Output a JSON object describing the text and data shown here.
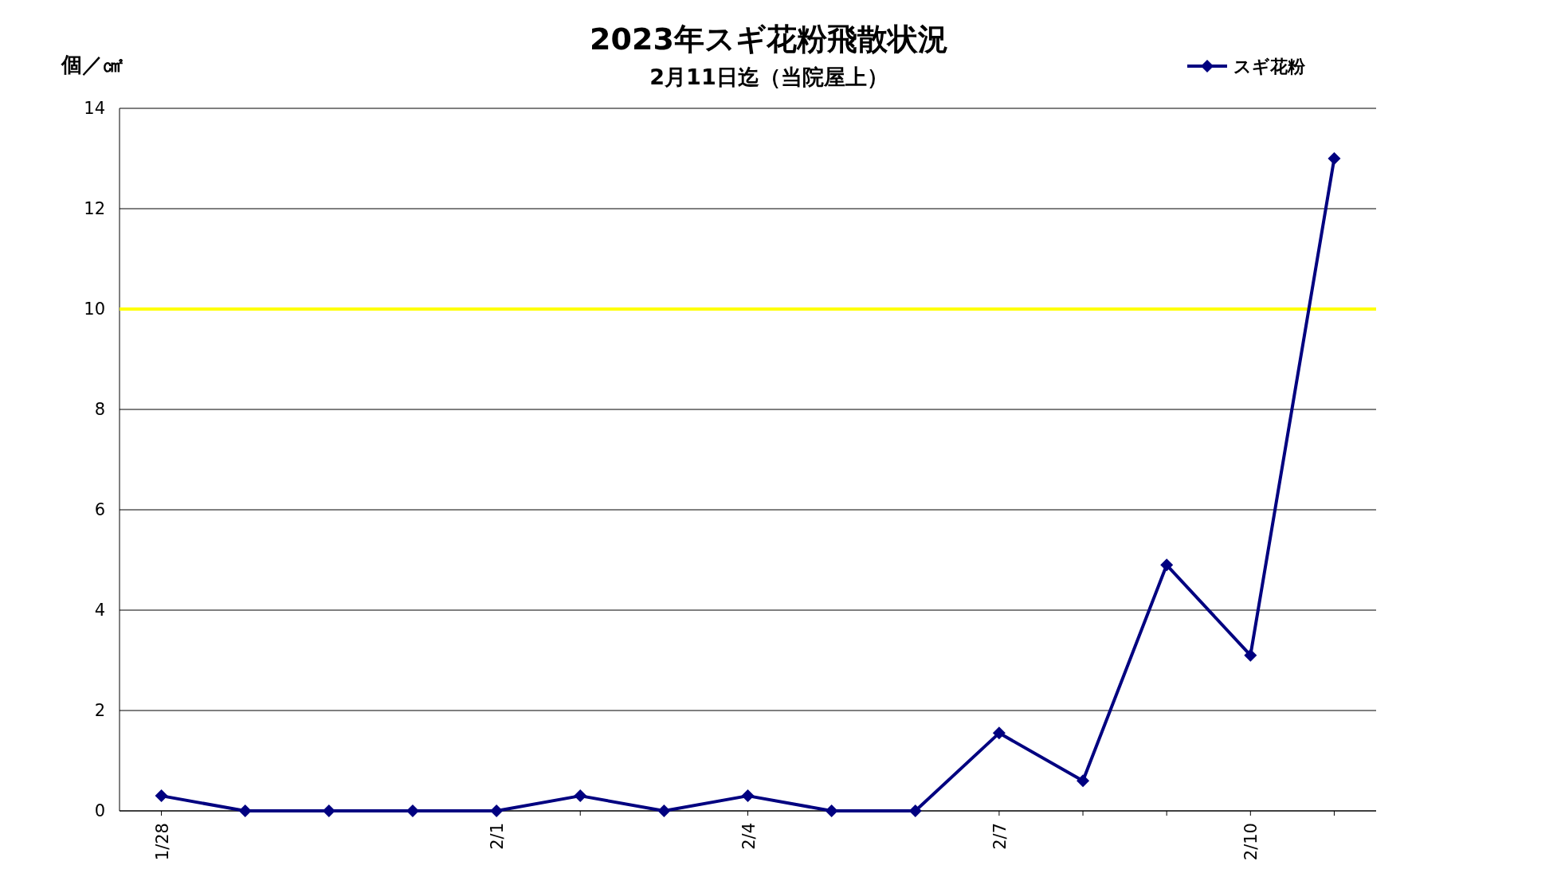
{
  "chart_data": {
    "type": "line",
    "title": "2023年スギ花粉飛散状況",
    "subtitle": "2月11日迄（当院屋上）",
    "ylabel": "個／㎠",
    "categories": [
      "1/28",
      null,
      null,
      null,
      "2/1",
      null,
      null,
      "2/4",
      null,
      null,
      "2/7",
      null,
      null,
      "2/10",
      null
    ],
    "series": [
      {
        "name": "スギ花粉",
        "color": "#000080",
        "values": [
          0.3,
          0,
          0,
          0,
          0,
          0.3,
          0,
          0.3,
          0,
          0,
          1.55,
          0.6,
          4.9,
          3.1,
          13.0
        ]
      }
    ],
    "ylim": [
      0,
      14
    ],
    "yticks": [
      0,
      2,
      4,
      6,
      8,
      10,
      12,
      14
    ],
    "ref_lines": [
      {
        "axis": "y",
        "value": 10,
        "color": "#ffff00"
      }
    ],
    "grid": "y",
    "legend": "top right",
    "marker": "diamond",
    "line_style": "solid"
  }
}
